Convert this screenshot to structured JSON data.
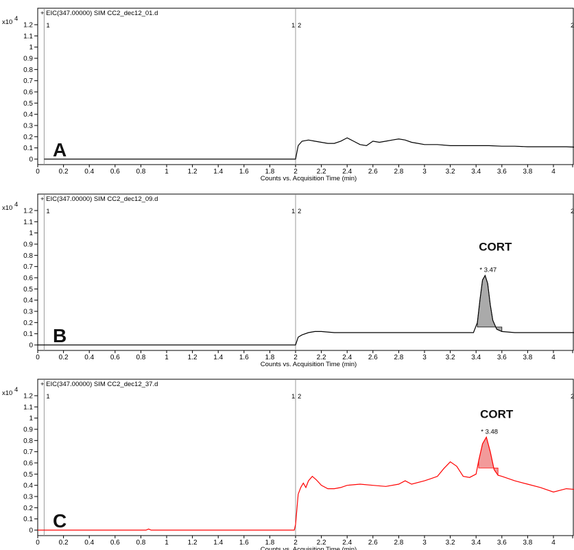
{
  "chart_data": [
    {
      "type": "line",
      "panel_label": "A",
      "trace_label": "+ EIC(347.00000) SIM CC2_dec12_01.d",
      "scale_label": "x10",
      "scale_exponent": "4",
      "xlabel": "Counts vs. Acquisition Time (min)",
      "xlim": [
        0,
        4.2
      ],
      "ylim": [
        0,
        1.2
      ],
      "x_ticks": [
        "0",
        "0.2",
        "0.4",
        "0.6",
        "0.8",
        "1",
        "1.2",
        "1.4",
        "1.6",
        "1.8",
        "2",
        "2.2",
        "2.4",
        "2.6",
        "2.8",
        "3",
        "3.2",
        "3.4",
        "3.6",
        "3.8",
        "4"
      ],
      "y_ticks": [
        "0",
        "0.1",
        "0.2",
        "0.3",
        "0.4",
        "0.5",
        "0.6",
        "0.7",
        "0.8",
        "0.9",
        "1",
        "1.1",
        "1.2"
      ],
      "segment_markers": [
        {
          "x": 0.05,
          "label": "1"
        },
        {
          "x": 2.0,
          "label": "1|2"
        }
      ],
      "color": "#000000",
      "x": [
        0.05,
        1.99,
        2.0,
        2.02,
        2.05,
        2.1,
        2.15,
        2.2,
        2.25,
        2.3,
        2.35,
        2.4,
        2.45,
        2.5,
        2.55,
        2.6,
        2.65,
        2.7,
        2.75,
        2.8,
        2.85,
        2.9,
        2.95,
        3.0,
        3.1,
        3.2,
        3.3,
        3.4,
        3.5,
        3.6,
        3.7,
        3.8,
        3.9,
        4.0,
        4.1,
        4.2
      ],
      "y": [
        0.0,
        0.0,
        0.0,
        0.12,
        0.16,
        0.17,
        0.16,
        0.15,
        0.14,
        0.14,
        0.16,
        0.19,
        0.16,
        0.13,
        0.12,
        0.16,
        0.15,
        0.16,
        0.17,
        0.18,
        0.17,
        0.15,
        0.14,
        0.13,
        0.13,
        0.12,
        0.12,
        0.12,
        0.12,
        0.115,
        0.115,
        0.11,
        0.11,
        0.11,
        0.11,
        0.105
      ],
      "peak": null
    },
    {
      "type": "line",
      "panel_label": "B",
      "trace_label": "+ EIC(347.00000) SIM CC2_dec12_09.d",
      "scale_label": "x10",
      "scale_exponent": "4",
      "xlabel": "Counts vs. Acquisition Time (min)",
      "xlim": [
        0,
        4.2
      ],
      "ylim": [
        0,
        1.2
      ],
      "x_ticks": [
        "0",
        "0.2",
        "0.4",
        "0.6",
        "0.8",
        "1",
        "1.2",
        "1.4",
        "1.6",
        "1.8",
        "2",
        "2.2",
        "2.4",
        "2.6",
        "2.8",
        "3",
        "3.2",
        "3.4",
        "3.6",
        "3.8",
        "4"
      ],
      "y_ticks": [
        "0",
        "0.1",
        "0.2",
        "0.3",
        "0.4",
        "0.5",
        "0.6",
        "0.7",
        "0.8",
        "0.9",
        "1",
        "1.1",
        "1.2"
      ],
      "segment_markers": [
        {
          "x": 0.05,
          "label": "1"
        },
        {
          "x": 2.0,
          "label": "1|2"
        }
      ],
      "color": "#000000",
      "fill": "#aaaaaa",
      "x": [
        0.0,
        1.99,
        2.0,
        2.02,
        2.05,
        2.1,
        2.15,
        2.2,
        2.3,
        2.4,
        2.6,
        2.8,
        3.0,
        3.2,
        3.3,
        3.38,
        3.41,
        3.43,
        3.45,
        3.47,
        3.49,
        3.51,
        3.53,
        3.56,
        3.6,
        3.7,
        3.8,
        4.0,
        4.2
      ],
      "y": [
        0.0,
        0.0,
        0.0,
        0.07,
        0.09,
        0.11,
        0.12,
        0.12,
        0.11,
        0.11,
        0.11,
        0.11,
        0.11,
        0.11,
        0.11,
        0.11,
        0.2,
        0.4,
        0.58,
        0.62,
        0.55,
        0.36,
        0.22,
        0.14,
        0.12,
        0.11,
        0.11,
        0.11,
        0.11
      ],
      "peak": {
        "label": "* 3.47",
        "x": 3.47,
        "y": 0.62,
        "from": 3.39,
        "to": 3.6,
        "name": "CORT"
      }
    },
    {
      "type": "line",
      "panel_label": "C",
      "trace_label": "+ EIC(347.00000) SIM CC2_dec12_37.d",
      "scale_label": "x10",
      "scale_exponent": "4",
      "xlabel": "Counts vs. Acquisition Time (min)",
      "xlim": [
        0,
        4.2
      ],
      "ylim": [
        0,
        1.2
      ],
      "x_ticks": [
        "0",
        "0.2",
        "0.4",
        "0.6",
        "0.8",
        "1",
        "1.2",
        "1.4",
        "1.6",
        "1.8",
        "2",
        "2.2",
        "2.4",
        "2.6",
        "2.8",
        "3",
        "3.2",
        "3.4",
        "3.6",
        "3.8",
        "4"
      ],
      "y_ticks": [
        "0",
        "0.1",
        "0.2",
        "0.3",
        "0.4",
        "0.5",
        "0.6",
        "0.7",
        "0.8",
        "0.9",
        "1",
        "1.1",
        "1.2"
      ],
      "segment_markers": [
        {
          "x": 0.05,
          "label": "1"
        },
        {
          "x": 2.0,
          "label": "1|2"
        }
      ],
      "color": "#ff0000",
      "fill": "#f29a9a",
      "x": [
        0.0,
        0.84,
        0.86,
        0.88,
        1.99,
        2.0,
        2.02,
        2.04,
        2.06,
        2.08,
        2.1,
        2.13,
        2.16,
        2.2,
        2.25,
        2.3,
        2.35,
        2.4,
        2.5,
        2.6,
        2.7,
        2.8,
        2.85,
        2.9,
        3.0,
        3.05,
        3.1,
        3.15,
        3.2,
        3.25,
        3.3,
        3.35,
        3.4,
        3.42,
        3.45,
        3.48,
        3.51,
        3.54,
        3.57,
        3.6,
        3.7,
        3.8,
        3.9,
        4.0,
        4.1,
        4.2
      ],
      "y": [
        0.0,
        0.0,
        0.01,
        0.0,
        0.0,
        0.05,
        0.32,
        0.38,
        0.42,
        0.38,
        0.44,
        0.48,
        0.45,
        0.4,
        0.37,
        0.37,
        0.38,
        0.4,
        0.41,
        0.4,
        0.39,
        0.41,
        0.44,
        0.41,
        0.44,
        0.46,
        0.48,
        0.55,
        0.61,
        0.57,
        0.48,
        0.47,
        0.5,
        0.62,
        0.77,
        0.83,
        0.7,
        0.54,
        0.49,
        0.48,
        0.44,
        0.41,
        0.38,
        0.34,
        0.37,
        0.36
      ],
      "peak": {
        "label": "* 3.48",
        "x": 3.48,
        "y": 0.83,
        "from": 3.41,
        "to": 3.57,
        "name": "CORT"
      }
    }
  ]
}
